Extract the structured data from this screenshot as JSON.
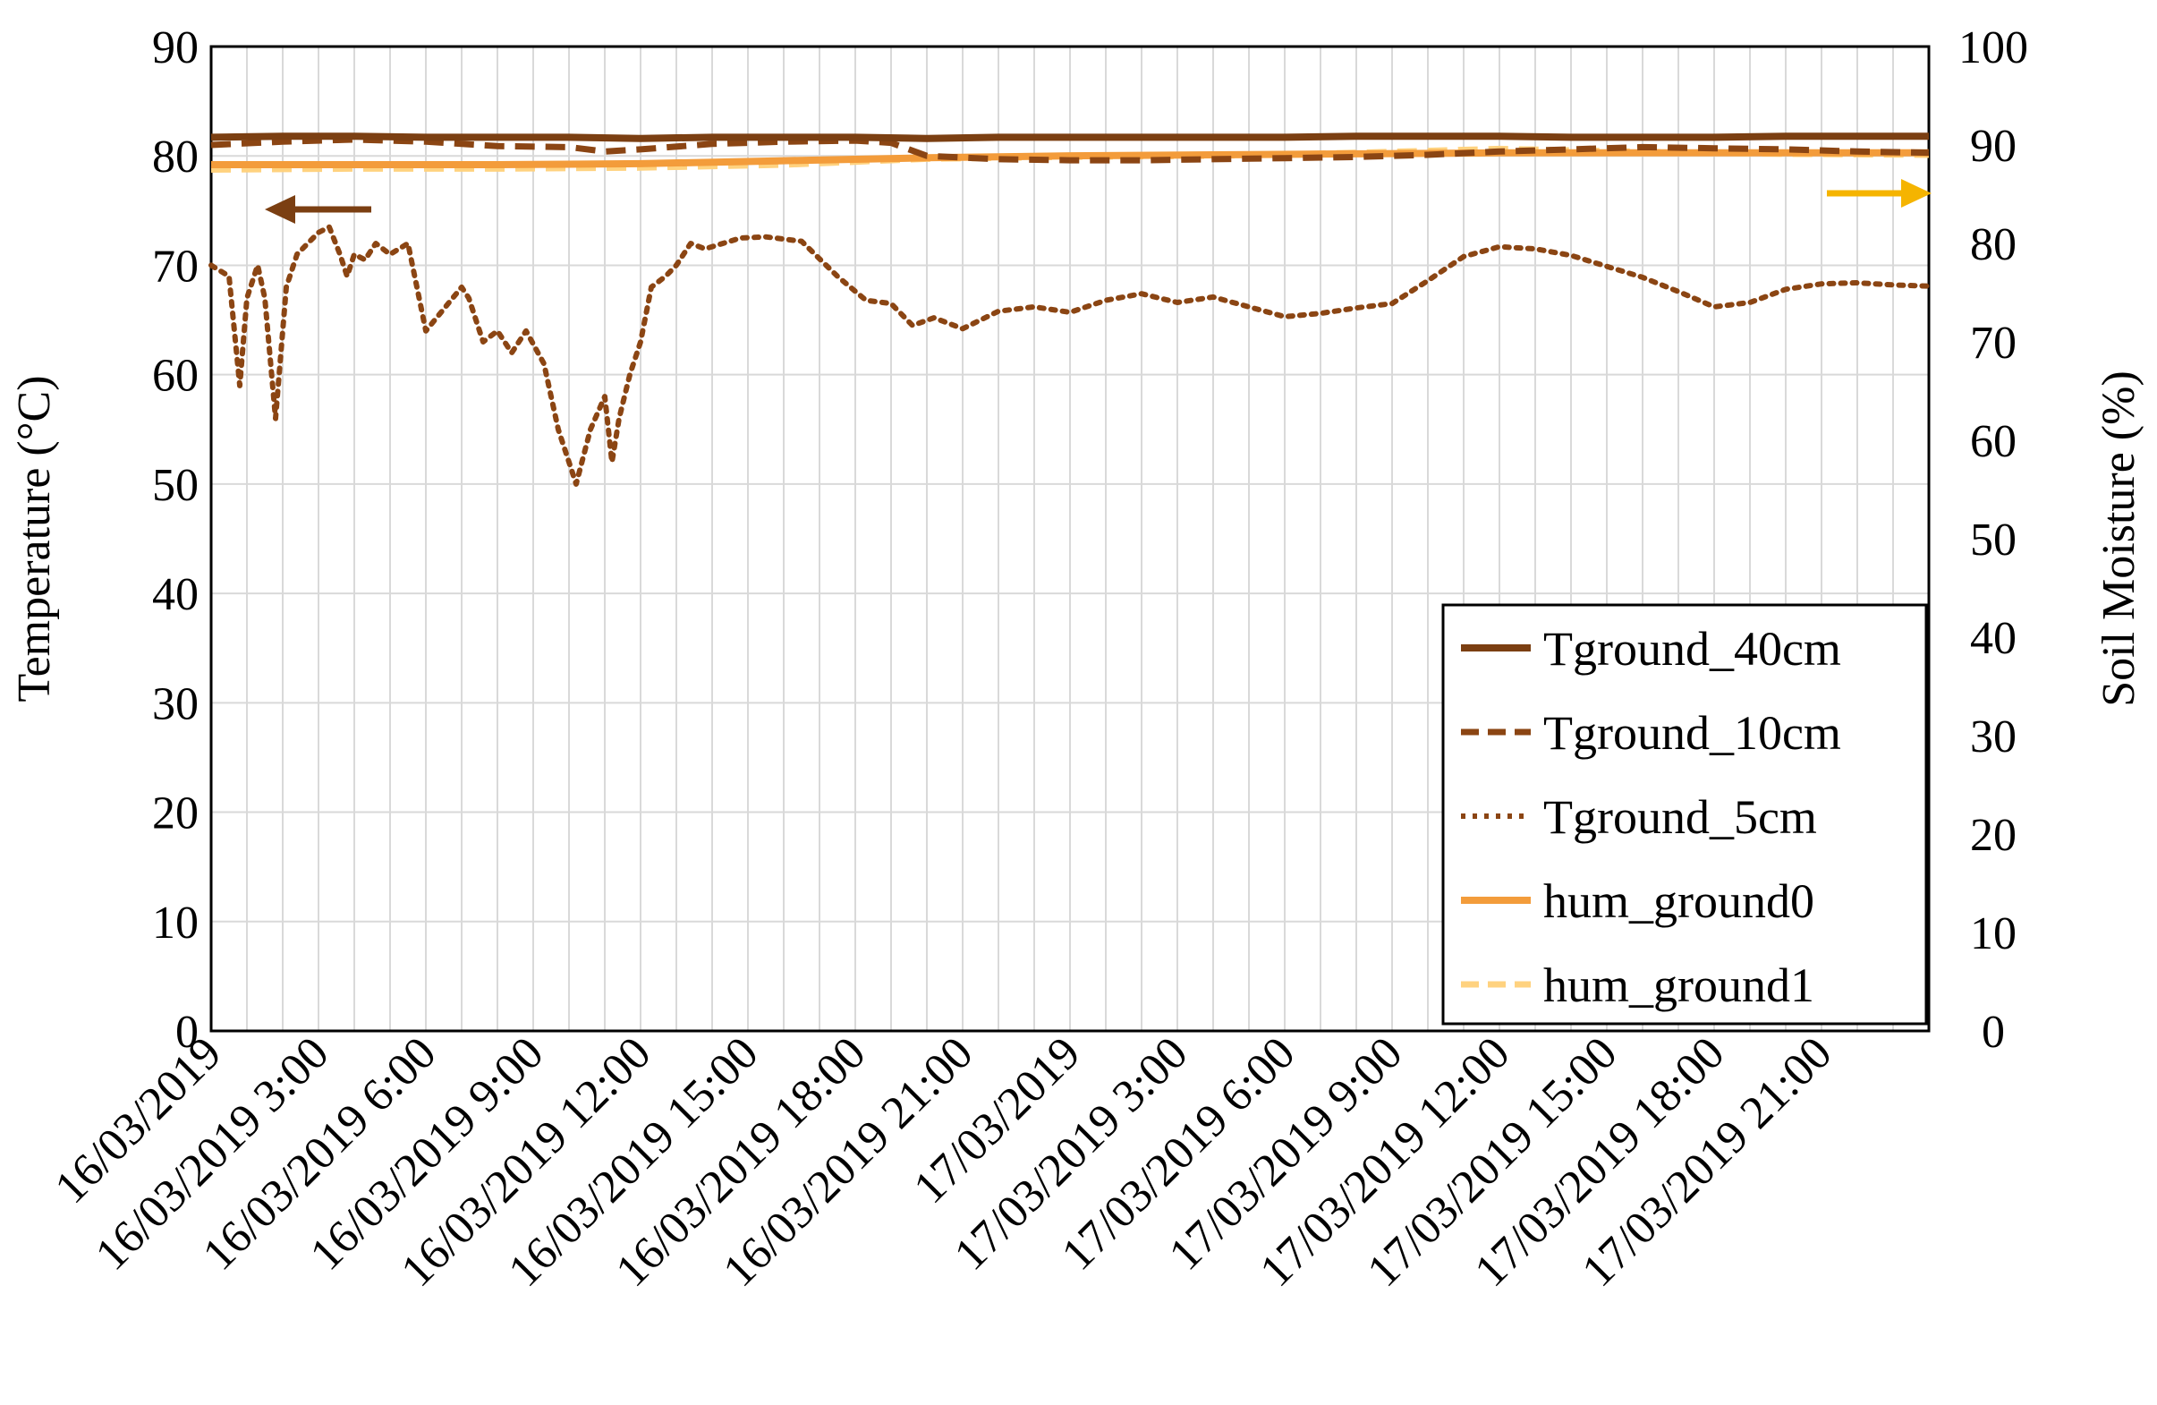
{
  "chart_data": {
    "type": "line",
    "title": "",
    "xlabel": "",
    "ylabel": "Temperature (°C)",
    "y2label": "Soil Moisture (%)",
    "ylim": [
      0,
      90
    ],
    "y2lim": [
      0,
      100
    ],
    "xlim": [
      "16/03/2019 0:00",
      "17/03/2019 24:00"
    ],
    "x_unit": "hours since 16/03/2019 0:00",
    "x_tick_values": [
      0,
      3,
      6,
      9,
      12,
      15,
      18,
      21,
      24,
      27,
      30,
      33,
      36,
      39,
      42,
      45
    ],
    "x_tick_labels": [
      "16/03/2019",
      "16/03/2019 3:00",
      "16/03/2019 6:00",
      "16/03/2019 9:00",
      "16/03/2019 12:00",
      "16/03/2019 15:00",
      "16/03/2019 18:00",
      "16/03/2019 21:00",
      "17/03/2019",
      "17/03/2019 3:00",
      "17/03/2019 6:00",
      "17/03/2019 9:00",
      "17/03/2019 12:00",
      "17/03/2019 15:00",
      "17/03/2019 18:00",
      "17/03/2019 21:00"
    ],
    "y_ticks": [
      "0",
      "10",
      "20",
      "30",
      "40",
      "50",
      "60",
      "70",
      "80",
      "90"
    ],
    "y2_ticks": [
      "0",
      "10",
      "20",
      "30",
      "40",
      "50",
      "60",
      "70",
      "80",
      "90",
      "100"
    ],
    "grid": true,
    "legend_position": "bottom-right",
    "series": [
      {
        "name": "Tground_40cm",
        "axis": "left",
        "color": "#7B3F12",
        "style": "solid",
        "x": [
          0,
          2,
          4,
          6,
          8,
          10,
          12,
          14,
          16,
          18,
          20,
          22,
          24,
          26,
          28,
          30,
          32,
          34,
          36,
          38,
          40,
          42,
          44,
          46,
          48
        ],
        "y": [
          81.7,
          81.8,
          81.8,
          81.7,
          81.7,
          81.7,
          81.6,
          81.7,
          81.7,
          81.7,
          81.6,
          81.7,
          81.7,
          81.7,
          81.7,
          81.7,
          81.8,
          81.8,
          81.8,
          81.7,
          81.7,
          81.7,
          81.8,
          81.8,
          81.8
        ]
      },
      {
        "name": "Tground_10cm",
        "axis": "left",
        "color": "#8B4513",
        "style": "dashed",
        "x": [
          0,
          2,
          4,
          6,
          8,
          10,
          11,
          12,
          14,
          16,
          18,
          19,
          20,
          22,
          24,
          26,
          28,
          30,
          32,
          34,
          36,
          38,
          40,
          42,
          44,
          46,
          48
        ],
        "y": [
          81.0,
          81.3,
          81.5,
          81.3,
          80.9,
          80.8,
          80.4,
          80.6,
          81.1,
          81.3,
          81.4,
          81.2,
          80.0,
          79.7,
          79.6,
          79.6,
          79.7,
          79.8,
          79.9,
          80.1,
          80.4,
          80.6,
          80.8,
          80.7,
          80.6,
          80.4,
          80.3
        ]
      },
      {
        "name": "Tground_5cm",
        "axis": "left",
        "color": "#8B4513",
        "style": "dotted",
        "x": [
          0,
          0.5,
          0.8,
          1.0,
          1.3,
          1.5,
          1.8,
          2.1,
          2.4,
          2.7,
          3.0,
          3.3,
          3.6,
          3.8,
          4.0,
          4.3,
          4.6,
          5.0,
          5.5,
          6.0,
          6.5,
          7.0,
          7.2,
          7.6,
          8.0,
          8.4,
          8.8,
          9.3,
          9.7,
          10.2,
          10.6,
          11.0,
          11.2,
          11.4,
          11.7,
          12.0,
          12.3,
          12.7,
          13.0,
          13.4,
          13.8,
          14.3,
          14.8,
          15.5,
          16.5,
          17.5,
          18.3,
          19.0,
          19.6,
          20.2,
          21.0,
          22.0,
          23.0,
          24.0,
          25.0,
          26.0,
          27.0,
          28.0,
          29.0,
          30.0,
          31.0,
          32.0,
          33.0,
          34.0,
          35.0,
          36.0,
          37.0,
          38.0,
          39.0,
          40.0,
          41.0,
          42.0,
          43.0,
          44.0,
          45.0,
          46.0,
          47.0,
          48.0
        ],
        "y": [
          70,
          69,
          59,
          67,
          70,
          67,
          56,
          68,
          71,
          72,
          73,
          73.5,
          71,
          69,
          71,
          70.5,
          72,
          71,
          72,
          64,
          66,
          68,
          67,
          63,
          64,
          62,
          64,
          61,
          55,
          50,
          55,
          58,
          52,
          56,
          60,
          63,
          68,
          69,
          70,
          72,
          71.5,
          72,
          72.5,
          72.6,
          72.2,
          69,
          66.8,
          66.5,
          64.5,
          65.2,
          64.2,
          65.8,
          66.2,
          65.7,
          66.8,
          67.4,
          66.6,
          67.1,
          66.2,
          65.3,
          65.6,
          66.1,
          66.5,
          68.6,
          70.8,
          71.7,
          71.5,
          70.9,
          69.9,
          68.9,
          67.6,
          66.2,
          66.6,
          67.8,
          68.3,
          68.4,
          68.2,
          68.1
        ]
      },
      {
        "name": "hum_ground0",
        "axis": "right",
        "color": "#F39C3B",
        "style": "solid",
        "x": [
          0,
          4,
          8,
          12,
          16,
          20,
          24,
          28,
          32,
          36,
          40,
          44,
          48
        ],
        "y": [
          88.0,
          88.0,
          88.0,
          88.1,
          88.4,
          88.7,
          88.9,
          89.0,
          89.1,
          89.2,
          89.2,
          89.2,
          89.2
        ]
      },
      {
        "name": "hum_ground1",
        "axis": "right",
        "color": "#FFD27F",
        "style": "dashed",
        "x": [
          0,
          4,
          8,
          12,
          16,
          20,
          24,
          28,
          32,
          36,
          40,
          44,
          48
        ],
        "y": [
          87.5,
          87.6,
          87.6,
          87.7,
          88.0,
          88.6,
          88.8,
          88.9,
          89.2,
          89.6,
          89.3,
          89.1,
          89.0
        ]
      }
    ]
  }
}
